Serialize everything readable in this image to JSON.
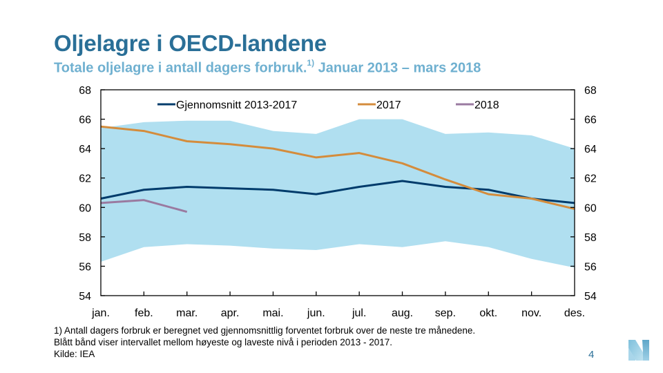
{
  "slide": {
    "title": "Oljelagre i OECD-landene",
    "subtitle_main": "Totale oljelagre i antall dagers forbruk.",
    "subtitle_footnote_ref": "1)",
    "subtitle_period": " Januar 2013 – mars 2018",
    "footnotes": [
      "1)  Antall dagers forbruk er beregnet ved gjennomsnittlig forventet forbruk over de neste tre månedene.",
      "Blått bånd viser intervallet  mellom høyeste  og laveste nivå i perioden 2013 - 2017.",
      "Kilde: IEA"
    ],
    "page_number": "4",
    "logo_icon": "norges-bank-n-logo",
    "colors": {
      "title": "#2a6f97",
      "subtitle": "#6fb0d0",
      "band": "#b0dff0",
      "average": "#003b6b",
      "y2017": "#d48c3c",
      "y2018": "#9a7aa0"
    }
  },
  "chart_data": {
    "type": "line",
    "title": "Oljelagre i OECD-landene",
    "xlabel": "",
    "ylabel": "",
    "categories": [
      "jan.",
      "feb.",
      "mar.",
      "apr.",
      "mai.",
      "jun.",
      "jul.",
      "aug.",
      "sep.",
      "okt.",
      "nov.",
      "des."
    ],
    "ylim": [
      54,
      68
    ],
    "yticks": [
      54,
      56,
      58,
      60,
      62,
      64,
      66,
      68
    ],
    "y_axis_sides": [
      "left",
      "right"
    ],
    "grid": false,
    "legend_position": "top",
    "band": {
      "name": "Intervall høyeste–laveste 2013-2017",
      "upper": [
        65.4,
        65.8,
        65.9,
        65.9,
        65.2,
        65.0,
        66.0,
        66.0,
        65.0,
        65.1,
        64.9,
        64.0
      ],
      "lower": [
        56.3,
        57.3,
        57.5,
        57.4,
        57.2,
        57.1,
        57.5,
        57.3,
        57.7,
        57.3,
        56.5,
        55.9
      ]
    },
    "series": [
      {
        "name": "Gjennomsnitt 2013-2017",
        "color": "#003b6b",
        "values": [
          60.6,
          61.2,
          61.4,
          61.3,
          61.2,
          60.9,
          61.4,
          61.8,
          61.4,
          61.2,
          60.6,
          60.3
        ]
      },
      {
        "name": "2017",
        "color": "#d48c3c",
        "values": [
          65.5,
          65.2,
          64.5,
          64.3,
          64.0,
          63.4,
          63.7,
          63.0,
          61.9,
          60.9,
          60.6,
          59.9
        ]
      },
      {
        "name": "2018",
        "color": "#9a7aa0",
        "values": [
          60.3,
          60.5,
          59.7,
          null,
          null,
          null,
          null,
          null,
          null,
          null,
          null,
          null
        ]
      }
    ]
  }
}
